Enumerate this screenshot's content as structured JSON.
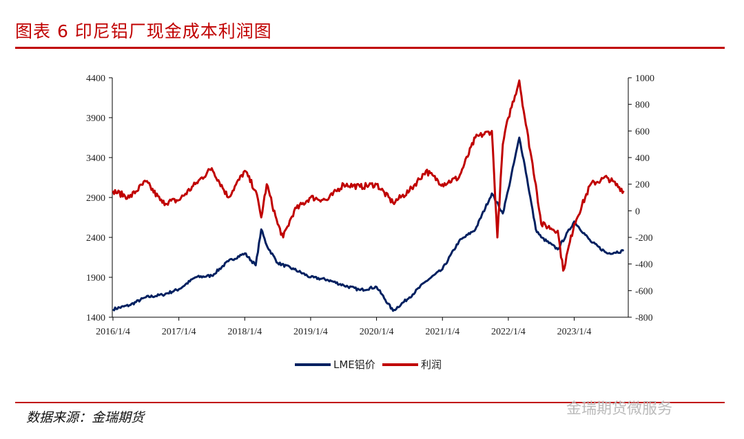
{
  "title": "图表 6 印尼铝厂现金成本利润图",
  "source": "数据来源：金瑞期货",
  "watermark": "金瑞期货微服务",
  "chart_data": {
    "type": "line",
    "title": "",
    "x_ticks": [
      "2016/1/4",
      "2017/1/4",
      "2018/1/4",
      "2019/1/4",
      "2020/1/4",
      "2021/1/4",
      "2022/1/4",
      "2023/1/4"
    ],
    "x_range": [
      "2016-01",
      "2023-10"
    ],
    "y_left": {
      "range": [
        1400,
        4400
      ],
      "ticks": [
        1400,
        1900,
        2400,
        2900,
        3400,
        3900,
        4400
      ]
    },
    "y_right": {
      "range": [
        -800,
        1000
      ],
      "ticks": [
        -800,
        -600,
        -400,
        -200,
        0,
        200,
        400,
        600,
        800,
        1000
      ]
    },
    "grid": false,
    "legend_placement": "bottom",
    "series": [
      {
        "name": "LME铝价",
        "axis": "left",
        "color": "#002060",
        "points": [
          [
            "2016-01",
            1500
          ],
          [
            "2016-04",
            1550
          ],
          [
            "2016-07",
            1650
          ],
          [
            "2016-10",
            1680
          ],
          [
            "2017-01",
            1750
          ],
          [
            "2017-04",
            1900
          ],
          [
            "2017-07",
            1920
          ],
          [
            "2017-10",
            2100
          ],
          [
            "2018-01",
            2200
          ],
          [
            "2018-03",
            2050
          ],
          [
            "2018-04",
            2500
          ],
          [
            "2018-05",
            2300
          ],
          [
            "2018-07",
            2080
          ],
          [
            "2018-10",
            2000
          ],
          [
            "2019-01",
            1900
          ],
          [
            "2019-04",
            1870
          ],
          [
            "2019-07",
            1800
          ],
          [
            "2019-10",
            1740
          ],
          [
            "2020-01",
            1780
          ],
          [
            "2020-04",
            1480
          ],
          [
            "2020-07",
            1650
          ],
          [
            "2020-10",
            1850
          ],
          [
            "2021-01",
            2000
          ],
          [
            "2021-04",
            2350
          ],
          [
            "2021-07",
            2500
          ],
          [
            "2021-10",
            2950
          ],
          [
            "2021-12",
            2700
          ],
          [
            "2022-01",
            3000
          ],
          [
            "2022-03",
            3650
          ],
          [
            "2022-04",
            3300
          ],
          [
            "2022-06",
            2500
          ],
          [
            "2022-07",
            2400
          ],
          [
            "2022-10",
            2250
          ],
          [
            "2023-01",
            2600
          ],
          [
            "2023-04",
            2350
          ],
          [
            "2023-07",
            2200
          ],
          [
            "2023-10",
            2230
          ]
        ]
      },
      {
        "name": "利润",
        "axis": "right",
        "color": "#c00000",
        "points": [
          [
            "2016-01",
            150
          ],
          [
            "2016-04",
            100
          ],
          [
            "2016-07",
            220
          ],
          [
            "2016-10",
            60
          ],
          [
            "2017-01",
            80
          ],
          [
            "2017-04",
            200
          ],
          [
            "2017-07",
            320
          ],
          [
            "2017-10",
            100
          ],
          [
            "2018-01",
            300
          ],
          [
            "2018-03",
            150
          ],
          [
            "2018-04",
            -50
          ],
          [
            "2018-05",
            200
          ],
          [
            "2018-07",
            -100
          ],
          [
            "2018-08",
            -200
          ],
          [
            "2018-10",
            0
          ],
          [
            "2019-01",
            100
          ],
          [
            "2019-04",
            80
          ],
          [
            "2019-07",
            200
          ],
          [
            "2019-10",
            180
          ],
          [
            "2020-01",
            200
          ],
          [
            "2020-04",
            60
          ],
          [
            "2020-07",
            150
          ],
          [
            "2020-10",
            300
          ],
          [
            "2021-01",
            200
          ],
          [
            "2021-04",
            250
          ],
          [
            "2021-07",
            550
          ],
          [
            "2021-10",
            600
          ],
          [
            "2021-11",
            -200
          ],
          [
            "2021-12",
            500
          ],
          [
            "2022-01",
            700
          ],
          [
            "2022-03",
            980
          ],
          [
            "2022-04",
            700
          ],
          [
            "2022-06",
            200
          ],
          [
            "2022-07",
            -100
          ],
          [
            "2022-10",
            -150
          ],
          [
            "2022-11",
            -450
          ],
          [
            "2023-01",
            -100
          ],
          [
            "2023-04",
            200
          ],
          [
            "2023-07",
            250
          ],
          [
            "2023-10",
            150
          ]
        ]
      }
    ]
  }
}
